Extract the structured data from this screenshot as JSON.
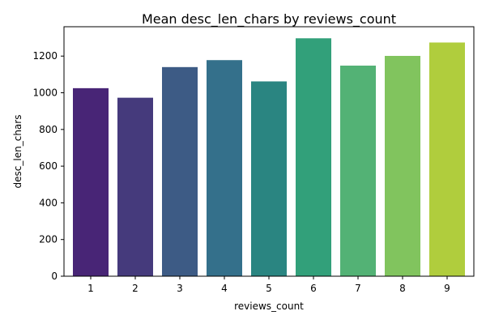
{
  "chart_data": {
    "type": "bar",
    "title": "Mean desc_len_chars by reviews_count",
    "xlabel": "reviews_count",
    "ylabel": "desc_len_chars",
    "categories": [
      "1",
      "2",
      "3",
      "4",
      "5",
      "6",
      "7",
      "8",
      "9"
    ],
    "values": [
      1025,
      973,
      1140,
      1178,
      1062,
      1297,
      1148,
      1201,
      1274
    ],
    "colors": [
      "#482576",
      "#453a7c",
      "#3d5b85",
      "#34708b",
      "#2a8581",
      "#32a07a",
      "#53b275",
      "#81c45e",
      "#b0cd3d"
    ],
    "ylim": [
      0,
      1360
    ],
    "yticks": [
      0,
      200,
      400,
      600,
      800,
      1000,
      1200
    ],
    "grid": false,
    "legend": "none"
  }
}
